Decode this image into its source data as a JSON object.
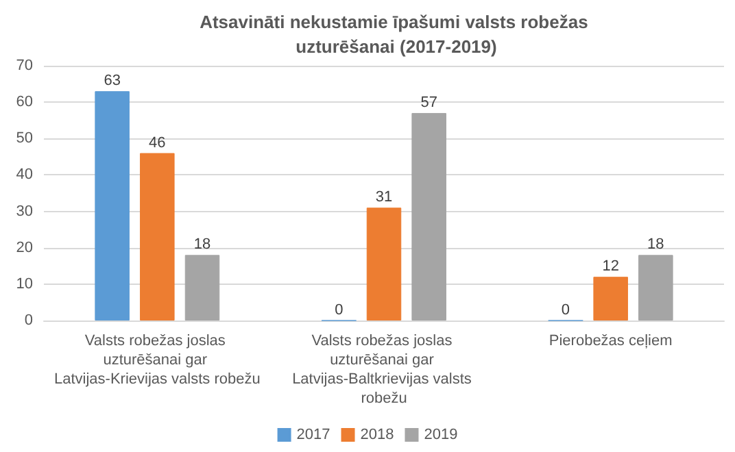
{
  "chart_data": {
    "type": "bar",
    "title": "Atsavināti nekustamie īpašumi valsts robežas uzturēšanai (2017-2019)",
    "categories": [
      "Valsts robežas joslas uzturēšanai gar Latvijas-Krievijas valsts robežu",
      "Valsts robežas joslas uzturēšanai gar Latvijas-Baltkrievijas valsts robežu",
      "Pierobežas ceļiem"
    ],
    "series": [
      {
        "name": "2017",
        "color": "#5b9bd5",
        "values": [
          63,
          0,
          0
        ]
      },
      {
        "name": "2018",
        "color": "#ed7d31",
        "values": [
          46,
          31,
          12
        ]
      },
      {
        "name": "2019",
        "color": "#a5a5a5",
        "values": [
          18,
          57,
          18
        ]
      }
    ],
    "ylim": [
      0,
      70
    ],
    "yticks": [
      0,
      10,
      20,
      30,
      40,
      50,
      60,
      70
    ],
    "grid": "y",
    "legend": "bottom",
    "data_labels": true
  }
}
